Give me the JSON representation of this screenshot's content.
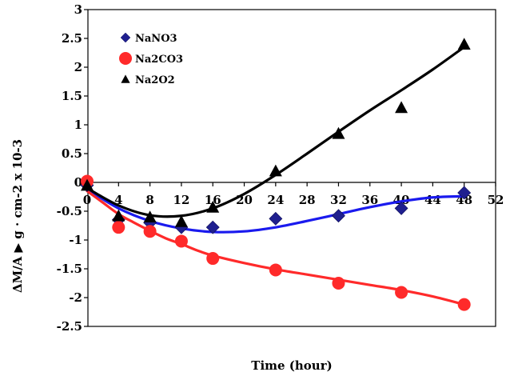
{
  "chart_data": {
    "type": "scatter",
    "title": "",
    "xlabel": "Time (hour)",
    "ylabel": "ΔM/A ▶ g · cm-2 x 10-3",
    "xlim": [
      0,
      52
    ],
    "ylim": [
      -2.5,
      3
    ],
    "xticks": [
      0,
      4,
      8,
      12,
      16,
      20,
      24,
      28,
      32,
      36,
      40,
      44,
      48,
      52
    ],
    "yticks": [
      3,
      2.5,
      2,
      1.5,
      1,
      0.5,
      0,
      -0.5,
      -1,
      -1.5,
      -2,
      -2.5
    ],
    "grid": false,
    "legend_position": "top-left",
    "series": [
      {
        "name": "NaNO3",
        "marker": "diamond",
        "color": "#1f1f8f",
        "line_color": "#1a1aee",
        "x": [
          0,
          4,
          8,
          12,
          16,
          24,
          32,
          40,
          48
        ],
        "y": [
          -0.05,
          -0.65,
          -0.7,
          -0.78,
          -0.78,
          -0.63,
          -0.58,
          -0.45,
          -0.18
        ],
        "trend": [
          [
            0,
            -0.12
          ],
          [
            4,
            -0.45
          ],
          [
            8,
            -0.67
          ],
          [
            12,
            -0.8
          ],
          [
            16,
            -0.86
          ],
          [
            20,
            -0.85
          ],
          [
            24,
            -0.78
          ],
          [
            28,
            -0.67
          ],
          [
            32,
            -0.55
          ],
          [
            36,
            -0.43
          ],
          [
            40,
            -0.33
          ],
          [
            44,
            -0.26
          ],
          [
            48,
            -0.24
          ]
        ]
      },
      {
        "name": "Na2CO3",
        "marker": "circle",
        "color": "#ff2a2a",
        "line_color": "#ff2a2a",
        "x": [
          0,
          4,
          8,
          12,
          16,
          24,
          32,
          40,
          48
        ],
        "y": [
          0.02,
          -0.78,
          -0.85,
          -1.02,
          -1.32,
          -1.52,
          -1.75,
          -1.91,
          -2.12
        ],
        "trend": [
          [
            0,
            -0.15
          ],
          [
            2,
            -0.35
          ],
          [
            4,
            -0.55
          ],
          [
            6,
            -0.7
          ],
          [
            8,
            -0.84
          ],
          [
            10,
            -0.97
          ],
          [
            12,
            -1.07
          ],
          [
            14,
            -1.18
          ],
          [
            16,
            -1.27
          ],
          [
            20,
            -1.4
          ],
          [
            24,
            -1.51
          ],
          [
            28,
            -1.6
          ],
          [
            32,
            -1.69
          ],
          [
            36,
            -1.78
          ],
          [
            40,
            -1.87
          ],
          [
            44,
            -1.98
          ],
          [
            48,
            -2.12
          ]
        ]
      },
      {
        "name": "Na2O2",
        "marker": "triangle",
        "color": "#000000",
        "line_color": "#000000",
        "x": [
          0,
          4,
          8,
          12,
          16,
          24,
          32,
          40,
          48
        ],
        "y": [
          -0.05,
          -0.58,
          -0.6,
          -0.68,
          -0.43,
          0.2,
          0.85,
          1.3,
          2.4
        ],
        "trend": [
          [
            0,
            -0.1
          ],
          [
            4,
            -0.4
          ],
          [
            8,
            -0.57
          ],
          [
            12,
            -0.58
          ],
          [
            16,
            -0.45
          ],
          [
            20,
            -0.2
          ],
          [
            24,
            0.13
          ],
          [
            28,
            0.5
          ],
          [
            32,
            0.88
          ],
          [
            36,
            1.25
          ],
          [
            40,
            1.6
          ],
          [
            44,
            1.96
          ],
          [
            48,
            2.35
          ]
        ]
      }
    ]
  }
}
